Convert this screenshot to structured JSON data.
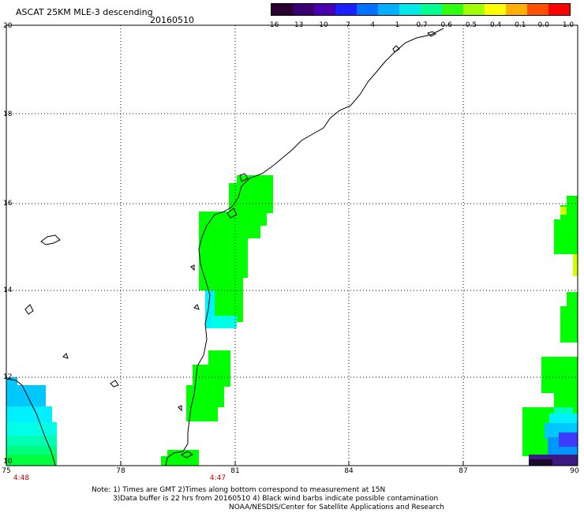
{
  "header": {
    "title": "ASCAT 25KM MLE-3 descending",
    "date": "20160510"
  },
  "colorbar": {
    "ticks": [
      "-16",
      "-13",
      "-10",
      "-7",
      "-4",
      "-1",
      "-0.7",
      "-0.6",
      "-0.5",
      "-0.4",
      "-0.1",
      "0.0",
      "1.0"
    ],
    "colors": [
      "#2a0030",
      "#3b0070",
      "#4a00b0",
      "#1a20ff",
      "#0070ff",
      "#00b0ff",
      "#00e8e8",
      "#00ff90",
      "#30ff10",
      "#a0ff00",
      "#ffff00",
      "#ffb000",
      "#ff5000",
      "#ff0000"
    ]
  },
  "axes": {
    "lat_labels": [
      "20",
      "18",
      "16",
      "14",
      "12",
      "10"
    ],
    "lon_labels": [
      "75",
      "78",
      "81",
      "84",
      "87",
      "90"
    ],
    "time_labels": [
      {
        "lon": 75,
        "text": "4:48"
      },
      {
        "lon": 80.6,
        "text": "4:47"
      }
    ]
  },
  "notes": {
    "line1": "Note: 1) Times are GMT 2)Times along bottom correspond to measurement at 15N",
    "line2": "3)Data buffer is 22 hrs from 20160510 4) Black wind barbs indicate possible contamination",
    "line3": "NOAA/NESDIS/Center for Satellite Applications and Research"
  },
  "colors": {
    "green": "#00ff00",
    "cyan": "#00ffe6",
    "light_cyan": "#00f0ff",
    "sky": "#00c8ff",
    "blue": "#0096ff",
    "deep_blue": "#3c3cff",
    "purple": "#3c1a80",
    "black_purple": "#1a0a30",
    "yellow_green": "#ccff00",
    "yellow": "#ffff00"
  }
}
